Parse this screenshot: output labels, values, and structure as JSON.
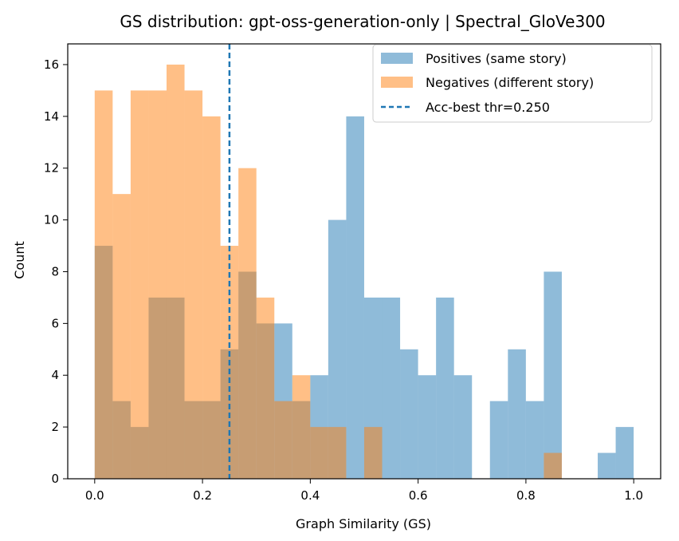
{
  "chart_data": {
    "type": "histogram",
    "title": "GS distribution: gpt-oss-generation-only | Spectral_GloVe300",
    "xlabel": "Graph Similarity (GS)",
    "ylabel": "Count",
    "xlim": [
      -0.05,
      1.05
    ],
    "ylim": [
      0,
      16.8
    ],
    "xticks": [
      0.0,
      0.2,
      0.4,
      0.6,
      0.8,
      1.0
    ],
    "xtick_labels": [
      "0.0",
      "0.2",
      "0.4",
      "0.6",
      "0.8",
      "1.0"
    ],
    "yticks": [
      0,
      2,
      4,
      6,
      8,
      10,
      12,
      14,
      16
    ],
    "ytick_labels": [
      "0",
      "2",
      "4",
      "6",
      "8",
      "10",
      "12",
      "14",
      "16"
    ],
    "grid": false,
    "legend_position": "top-right",
    "threshold": {
      "value": 0.25,
      "label": "Acc-best thr=0.250",
      "style": "dashed",
      "color": "#1f77b4"
    },
    "series": [
      {
        "name": "Positives (same story)",
        "color": "#1f77b4",
        "opacity": 0.5,
        "bin_start": 0.0,
        "bin_width": 0.03333,
        "counts": [
          9,
          3,
          2,
          7,
          7,
          3,
          3,
          5,
          8,
          6,
          6,
          3,
          4,
          10,
          14,
          7,
          7,
          5,
          4,
          7,
          4,
          0,
          3,
          5,
          3,
          8,
          0,
          0,
          1,
          2
        ]
      },
      {
        "name": "Negatives (different story)",
        "color": "#ff7f0e",
        "opacity": 0.5,
        "bin_start": 0.0,
        "bin_width": 0.03333,
        "counts": [
          15,
          11,
          15,
          15,
          16,
          15,
          14,
          9,
          12,
          7,
          3,
          4,
          2,
          2,
          0,
          2,
          0,
          0,
          0,
          0,
          0,
          0,
          0,
          0,
          0,
          1,
          0,
          0,
          0,
          0
        ]
      }
    ]
  }
}
